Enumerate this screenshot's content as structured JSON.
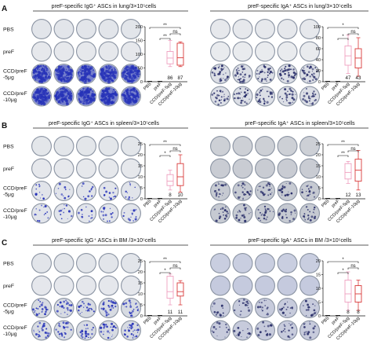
{
  "colors": {
    "red_box": "#d93a3a",
    "pink_box": "#ef9fbf",
    "ring": "#5f6f86",
    "spot_igg": "#2733b8",
    "spot_iga": "#2a2f6a"
  },
  "panels": [
    {
      "letter": "A",
      "left": {
        "title": "preF-specific IgG⁺ ASCs in lung/3×10⁵cells",
        "well_bg": [
          "#e2e5ea",
          "#e6e8ec",
          "#d6dbe4"
        ],
        "density": [
          0,
          0,
          0.9,
          1.0
        ],
        "spot_color": "#2733b8",
        "chart_data": {
          "type": "box",
          "categories": [
            "PBS",
            "preF",
            "CCD/preF-5μg",
            "CCD/preF-10μg"
          ],
          "values": [
            0,
            0,
            86,
            87
          ],
          "value_labels": [
            "",
            "",
            "86",
            "87"
          ],
          "ylim": [
            0,
            200
          ],
          "yticks": [
            0,
            50,
            100,
            150,
            200
          ],
          "boxes": [
            null,
            null,
            {
              "q1": 65,
              "med": 86,
              "q3": 110,
              "lo": 55,
              "hi": 150
            },
            {
              "q1": 60,
              "med": 87,
              "q3": 140,
              "lo": 55,
              "hi": 145
            }
          ],
          "significance": [
            {
              "from": 0,
              "to": 3,
              "label": "**"
            },
            {
              "from": 1,
              "to": 2,
              "label": "**"
            },
            {
              "from": 2,
              "to": 3,
              "label": "ns"
            }
          ]
        }
      },
      "right": {
        "title": "preF-specific IgA⁺ ASCs in lung/3×10⁵cells",
        "well_bg": [
          "#e6e8ec",
          "#e9ebee",
          "#dcdfe6"
        ],
        "density": [
          0,
          0,
          0.35,
          0.3
        ],
        "spot_color": "#2a2f6a",
        "chart_data": {
          "type": "box",
          "categories": [
            "PBS",
            "preF",
            "CCD/preF-5μg",
            "CCD/preF-10μg"
          ],
          "values": [
            0,
            0,
            47,
            43
          ],
          "value_labels": [
            "",
            "",
            "47",
            "43"
          ],
          "ylim": [
            0,
            100
          ],
          "yticks": [
            0,
            20,
            40,
            60,
            80,
            100
          ],
          "boxes": [
            null,
            null,
            {
              "q1": 30,
              "med": 47,
              "q3": 65,
              "lo": 15,
              "hi": 85
            },
            {
              "q1": 25,
              "med": 43,
              "q3": 60,
              "lo": 10,
              "hi": 80
            }
          ],
          "significance": [
            {
              "from": 0,
              "to": 3,
              "label": "*"
            },
            {
              "from": 1,
              "to": 2,
              "label": "*"
            },
            {
              "from": 2,
              "to": 3,
              "label": "ns"
            }
          ]
        }
      }
    },
    {
      "letter": "B",
      "left": {
        "title": "preF-specific IgG⁺ ASCs in spleen/3×10⁵cells",
        "well_bg": [
          "#e3e6ea",
          "#e6e8ec",
          "#e1e4ea"
        ],
        "density": [
          0,
          0,
          0.12,
          0.15
        ],
        "spot_color": "#2733b8",
        "chart_data": {
          "type": "box",
          "categories": [
            "PBS",
            "preF",
            "CCD/preF-5μg",
            "CCD/preF-10μg"
          ],
          "values": [
            0,
            0,
            8,
            10
          ],
          "value_labels": [
            "",
            "",
            "8",
            "10"
          ],
          "ylim": [
            0,
            25
          ],
          "yticks": [
            0,
            5,
            10,
            15,
            20,
            25
          ],
          "boxes": [
            null,
            null,
            {
              "q1": 6,
              "med": 8,
              "q3": 11,
              "lo": 4,
              "hi": 13
            },
            {
              "q1": 6,
              "med": 10,
              "q3": 16,
              "lo": 3,
              "hi": 20
            }
          ],
          "significance": [
            {
              "from": 0,
              "to": 3,
              "label": "**"
            },
            {
              "from": 1,
              "to": 2,
              "label": "*"
            },
            {
              "from": 2,
              "to": 3,
              "label": "ns"
            }
          ]
        }
      },
      "right": {
        "title": "preF-specific IgA⁺ ASCs in spleen/3×10⁵cells",
        "well_bg": [
          "#cdd0d6",
          "#c9ccd3",
          "#c6cad2"
        ],
        "density": [
          0,
          0,
          0.2,
          0.22
        ],
        "spot_color": "#2a2f6a",
        "chart_data": {
          "type": "box",
          "categories": [
            "PBS",
            "preF",
            "CCD/preF-5μg",
            "CCD/preF-10μg"
          ],
          "values": [
            0,
            0,
            12,
            13
          ],
          "value_labels": [
            "",
            "",
            "12",
            "13"
          ],
          "ylim": [
            0,
            25
          ],
          "yticks": [
            0,
            5,
            10,
            15,
            20,
            25
          ],
          "boxes": [
            null,
            null,
            {
              "q1": 9,
              "med": 12,
              "q3": 16,
              "lo": 7,
              "hi": 17
            },
            {
              "q1": 8,
              "med": 13,
              "q3": 18,
              "lo": 4,
              "hi": 22
            }
          ],
          "significance": [
            {
              "from": 0,
              "to": 3,
              "label": "**"
            },
            {
              "from": 1,
              "to": 2,
              "label": "**"
            },
            {
              "from": 2,
              "to": 3,
              "label": "ns"
            }
          ]
        }
      }
    },
    {
      "letter": "C",
      "left": {
        "title": "preF-specific IgG⁺ ASCs in BM /3×10⁵cells",
        "well_bg": [
          "#e2e5ea",
          "#e5e7ec",
          "#d7dbe2"
        ],
        "density": [
          0,
          0,
          0.25,
          0.28
        ],
        "spot_color": "#2733b8",
        "chart_data": {
          "type": "box",
          "categories": [
            "PBS",
            "preF",
            "CCD/preF-5μg",
            "CCD/preF-10μg"
          ],
          "values": [
            0,
            0,
            11,
            11
          ],
          "value_labels": [
            "",
            "",
            "11",
            "11"
          ],
          "ylim": [
            0,
            25
          ],
          "yticks": [
            0,
            5,
            10,
            15,
            20,
            25
          ],
          "boxes": [
            null,
            null,
            {
              "q1": 8,
              "med": 11,
              "q3": 18,
              "lo": 5,
              "hi": 19
            },
            {
              "q1": 9,
              "med": 11,
              "q3": 15,
              "lo": 5,
              "hi": 16
            }
          ],
          "significance": [
            {
              "from": 0,
              "to": 3,
              "label": "**"
            },
            {
              "from": 1,
              "to": 2,
              "label": "*"
            },
            {
              "from": 2,
              "to": 3,
              "label": "ns"
            }
          ]
        }
      },
      "right": {
        "title": "preF-specific IgA⁺ ASCs in BM /3×10⁵cells",
        "well_bg": [
          "#c9cee0",
          "#c5cade",
          "#c7cbdc"
        ],
        "density": [
          0,
          0,
          0.18,
          0.16
        ],
        "spot_color": "#2a2f6a",
        "chart_data": {
          "type": "box",
          "categories": [
            "PBS",
            "preF",
            "CCD/preF-5μg",
            "CCD/preF-10μg"
          ],
          "values": [
            0,
            0,
            8,
            8
          ],
          "value_labels": [
            "",
            "",
            "8",
            "8"
          ],
          "ylim": [
            0,
            20
          ],
          "yticks": [
            0,
            5,
            10,
            15,
            20
          ],
          "boxes": [
            null,
            null,
            {
              "q1": 5,
              "med": 8,
              "q3": 13,
              "lo": 2,
              "hi": 16
            },
            {
              "q1": 5,
              "med": 8,
              "q3": 11,
              "lo": 2,
              "hi": 13
            }
          ],
          "significance": [
            {
              "from": 0,
              "to": 3,
              "label": "*"
            },
            {
              "from": 1,
              "to": 2,
              "label": "*"
            },
            {
              "from": 2,
              "to": 3,
              "label": "ns"
            }
          ]
        }
      }
    }
  ],
  "row_labels": [
    "PBS",
    "preF",
    "CCD/preF\n-5μg",
    "CCD/preF\n-10μg"
  ]
}
